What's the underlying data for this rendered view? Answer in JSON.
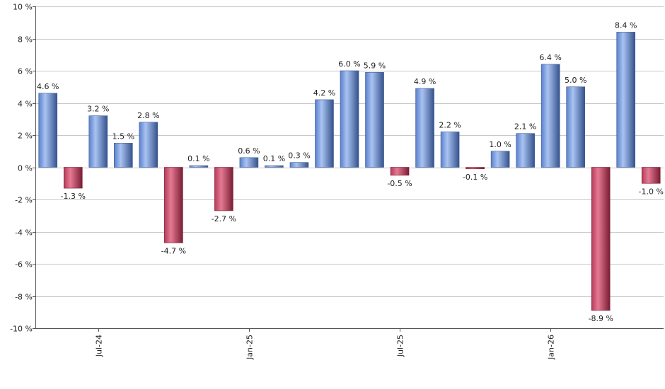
{
  "chart_data": {
    "type": "bar",
    "ylim": [
      -10,
      10
    ],
    "ytick_values": [
      -10,
      -8,
      -6,
      -4,
      -2,
      0,
      2,
      4,
      6,
      8,
      10
    ],
    "ytick_labels": [
      "-10 %",
      "-8 %",
      "-6 %",
      "-4 %",
      "-2 %",
      "0 %",
      "2 %",
      "4 %",
      "6 %",
      "8 %",
      "10 %"
    ],
    "grid": true,
    "values": [
      4.6,
      -1.3,
      3.2,
      1.5,
      2.8,
      -4.7,
      0.1,
      -2.7,
      0.6,
      0.1,
      0.3,
      4.2,
      6.0,
      5.9,
      -0.5,
      4.9,
      2.2,
      -0.1,
      1.0,
      2.1,
      6.4,
      5.0,
      -8.9,
      8.4,
      -1.0
    ],
    "value_labels": [
      "4.6 %",
      "-1.3 %",
      "3.2 %",
      "1.5 %",
      "2.8 %",
      "-4.7 %",
      "0.1 %",
      "-2.7 %",
      "0.6 %",
      "0.1 %",
      "0.3 %",
      "4.2 %",
      "6.0 %",
      "5.9 %",
      "-0.5 %",
      "4.9 %",
      "2.2 %",
      "-0.1 %",
      "1.0 %",
      "2.1 %",
      "6.4 %",
      "5.0 %",
      "-8.9 %",
      "8.4 %",
      "-1.0 %"
    ],
    "xtick_labels": [
      "Jul-24",
      "Jan-25",
      "Jul-25",
      "Jan-26"
    ],
    "xtick_bar_index": [
      2,
      8,
      14,
      20
    ],
    "colors": {
      "positive": "#7b9fe0",
      "positive_dark": "#2f4f8a",
      "negative": "#d0506e",
      "negative_dark": "#7a1c34"
    }
  }
}
